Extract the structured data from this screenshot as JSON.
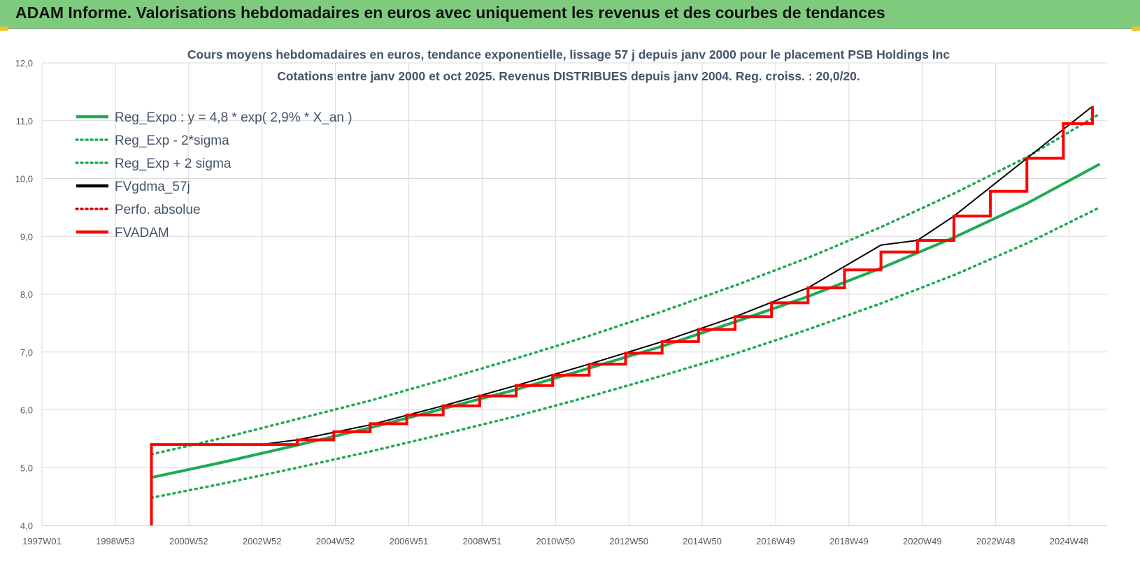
{
  "header": {
    "title": "ADAM Informe. Valorisations hebdomadaires en euros avec uniquement les revenus et des courbes de tendances"
  },
  "colors": {
    "header_bg": "#7ecb7e",
    "reg_green": "#1faa55",
    "fv_black": "#000000",
    "adam_red": "#ff0000",
    "perfo_red": "#d00000",
    "grid": "#d9d9d9"
  },
  "chart_data": {
    "type": "line",
    "title": "Cours moyens hebdomadaires en euros, tendance exponentielle, lissage 57 j depuis janv 2000 pour le placement PSB Holdings Inc",
    "subtitle": "Cotations entre janv 2000 et oct 2025. Revenus DISTRIBUES depuis janv 2004. Reg. croiss. : 20,0/20.",
    "xlabel": "",
    "ylabel": "",
    "x_tick_labels": [
      "1997W01",
      "1998W53",
      "2000W52",
      "2002W52",
      "2004W52",
      "2006W51",
      "2008W51",
      "2010W50",
      "2012W50",
      "2014W50",
      "2016W49",
      "2018W49",
      "2020W49",
      "2022W48",
      "2024W48"
    ],
    "x_range": [
      1997.0,
      2026.2
    ],
    "y_tick_labels": [
      "4,0",
      "5,0",
      "6,0",
      "7,0",
      "8,0",
      "9,0",
      "10,0",
      "11,0",
      "12,0"
    ],
    "ylim": [
      4.0,
      12.0
    ],
    "grid": true,
    "legend_position": "top-left",
    "legend": [
      {
        "name": "Reg_Expo : y = 4,8 * exp( 2,9% *  X_an )",
        "style": "solid",
        "color": "#1faa55"
      },
      {
        "name": "Reg_Exp - 2*sigma",
        "style": "dotted",
        "color": "#1faa55"
      },
      {
        "name": "Reg_Exp + 2 sigma",
        "style": "dotted",
        "color": "#1faa55"
      },
      {
        "name": "FVgdma_57j",
        "style": "solid",
        "color": "#000000"
      },
      {
        "name": "Perfo. absolue",
        "style": "dotted",
        "color": "#d00000"
      },
      {
        "name": "FVADAM",
        "style": "solid",
        "color": "#ff0000"
      }
    ],
    "series": [
      {
        "name": "Reg_Expo : y = 4,8 * exp( 2,9% *  X_an )",
        "x": [
          2000.0,
          2002.0,
          2004.0,
          2006.0,
          2008.0,
          2010.0,
          2012.0,
          2014.0,
          2016.0,
          2018.0,
          2020.0,
          2022.0,
          2024.0,
          2026.0
        ],
        "y": [
          4.83,
          5.1,
          5.39,
          5.69,
          6.02,
          6.35,
          6.72,
          7.1,
          7.52,
          7.96,
          8.45,
          8.98,
          9.57,
          10.25
        ]
      },
      {
        "name": "Reg_Exp - 2*sigma",
        "x": [
          2000.0,
          2002.0,
          2004.0,
          2006.0,
          2008.0,
          2010.0,
          2012.0,
          2014.0,
          2016.0,
          2018.0,
          2020.0,
          2022.0,
          2024.0,
          2026.0
        ],
        "y": [
          4.48,
          4.73,
          5.0,
          5.28,
          5.58,
          5.89,
          6.23,
          6.59,
          6.97,
          7.39,
          7.84,
          8.33,
          8.88,
          9.5
        ]
      },
      {
        "name": "Reg_Exp + 2 sigma",
        "x": [
          2000.0,
          2002.0,
          2004.0,
          2006.0,
          2008.0,
          2010.0,
          2012.0,
          2014.0,
          2016.0,
          2018.0,
          2020.0,
          2022.0,
          2024.0,
          2026.0
        ],
        "y": [
          5.23,
          5.52,
          5.84,
          6.16,
          6.52,
          6.89,
          7.28,
          7.7,
          8.15,
          8.63,
          9.16,
          9.74,
          10.37,
          11.12
        ]
      },
      {
        "name": "FVgdma_57j",
        "x": [
          2000.0,
          2003.0,
          2004.0,
          2006.0,
          2008.0,
          2010.0,
          2012.0,
          2014.0,
          2016.0,
          2018.0,
          2020.0,
          2021.0,
          2022.0,
          2024.0,
          2025.8
        ],
        "y": [
          5.4,
          5.4,
          5.48,
          5.74,
          6.07,
          6.42,
          6.79,
          7.18,
          7.61,
          8.11,
          8.85,
          8.93,
          9.35,
          10.35,
          11.25
        ]
      },
      {
        "name": "FVADAM",
        "x": [
          2000.0,
          2000.0,
          2003.0,
          2004.0,
          2005.0,
          2006.0,
          2007.0,
          2008.0,
          2009.0,
          2010.0,
          2011.0,
          2012.0,
          2013.0,
          2014.0,
          2015.0,
          2016.0,
          2017.0,
          2018.0,
          2019.0,
          2020.0,
          2021.0,
          2022.0,
          2023.0,
          2024.0,
          2025.0,
          2025.8
        ],
        "y": [
          4.0,
          5.4,
          5.4,
          5.48,
          5.62,
          5.76,
          5.91,
          6.07,
          6.24,
          6.42,
          6.6,
          6.79,
          6.98,
          7.18,
          7.39,
          7.61,
          7.85,
          8.11,
          8.42,
          8.73,
          8.93,
          9.35,
          9.78,
          10.35,
          10.95,
          11.25
        ]
      }
    ]
  }
}
